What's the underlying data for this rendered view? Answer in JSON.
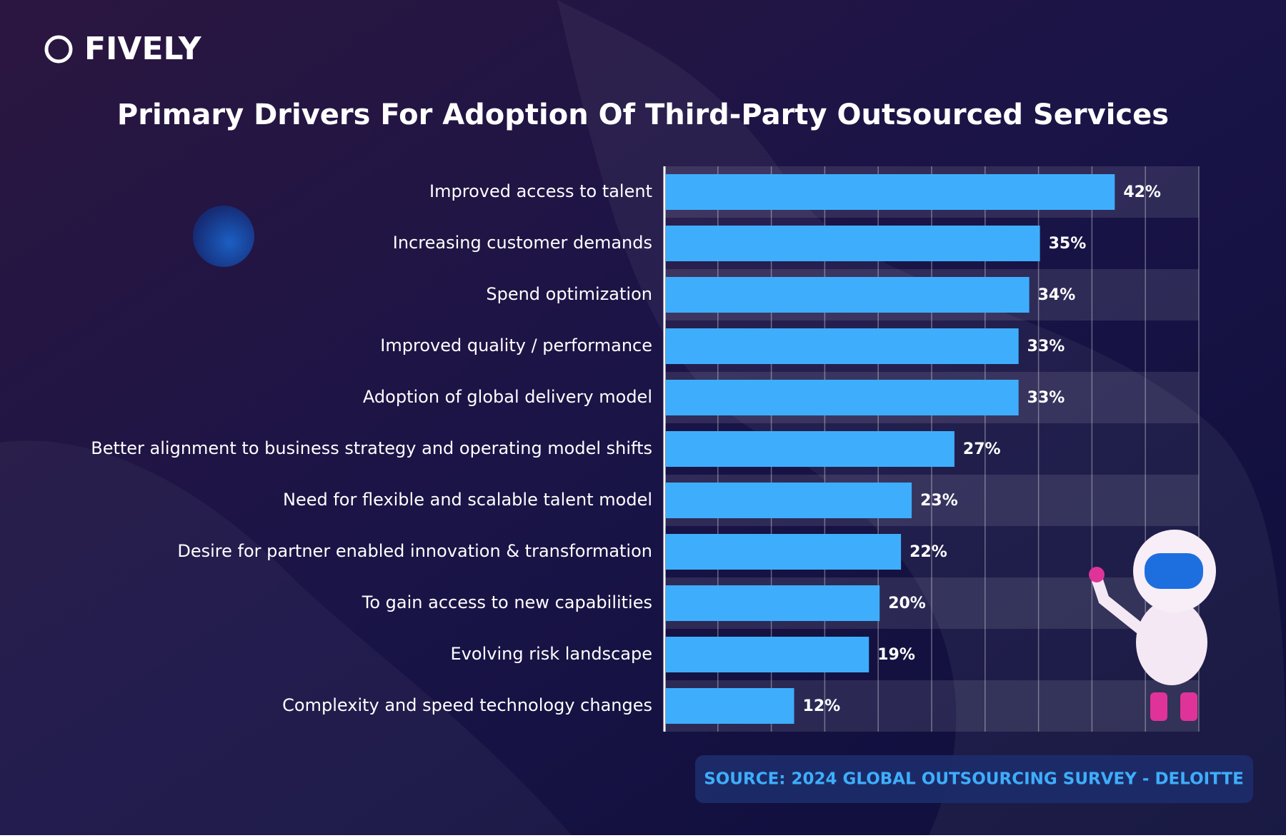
{
  "brand": "FIVELY",
  "chart_data": {
    "type": "bar",
    "orientation": "horizontal",
    "title": "Primary Drivers For Adoption Of Third-Party Outsourced Services",
    "categories": [
      "Improved access to talent",
      "Increasing customer demands",
      "Spend optimization",
      "Improved quality / performance",
      "Adoption of global delivery model",
      "Better alignment to business strategy and operating model shifts",
      "Need for flexible and scalable talent model",
      "Desire for partner enabled innovation & transformation",
      "To gain access to new capabilities",
      "Evolving risk landscape",
      "Complexity and speed technology changes"
    ],
    "values": [
      42,
      35,
      34,
      33,
      33,
      27,
      23,
      22,
      20,
      19,
      12
    ],
    "value_labels": [
      "42%",
      "35%",
      "34%",
      "33%",
      "33%",
      "27%",
      "23%",
      "22%",
      "20%",
      "19%",
      "12%"
    ],
    "color": "#3eaefc",
    "xlim": [
      0,
      50
    ],
    "xticks": [
      0,
      5,
      10,
      15,
      20,
      25,
      30,
      35,
      40,
      45,
      50
    ],
    "grid": true
  },
  "source": "SOURCE: 2024 GLOBAL OUTSOURCING SURVEY - DELOITTE"
}
